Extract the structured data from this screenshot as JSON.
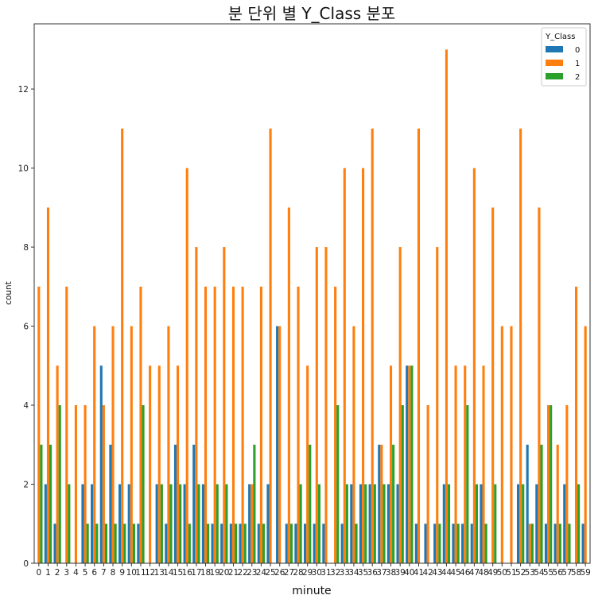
{
  "chart_data": {
    "type": "bar",
    "title": "분 단위 별 Y_Class 분포",
    "xlabel": "minute",
    "ylabel": "count",
    "ylim": [
      0,
      13.65
    ],
    "yticks": [
      0,
      2,
      4,
      6,
      8,
      10,
      12
    ],
    "categories": [
      "0",
      "1",
      "2",
      "3",
      "4",
      "5",
      "6",
      "7",
      "8",
      "9",
      "10",
      "11",
      "12",
      "13",
      "14",
      "15",
      "16",
      "17",
      "18",
      "19",
      "20",
      "21",
      "22",
      "23",
      "24",
      "25",
      "26",
      "27",
      "28",
      "29",
      "30",
      "31",
      "32",
      "33",
      "34",
      "35",
      "36",
      "37",
      "38",
      "39",
      "40",
      "41",
      "42",
      "43",
      "44",
      "45",
      "46",
      "47",
      "48",
      "49",
      "50",
      "51",
      "52",
      "53",
      "54",
      "55",
      "56",
      "57",
      "58",
      "59"
    ],
    "legend": {
      "title": "Y_Class",
      "position": "top-right"
    },
    "series": [
      {
        "name": "0",
        "color": "#1f77b4",
        "values": [
          0,
          2,
          1,
          0,
          0,
          2,
          2,
          5,
          3,
          2,
          2,
          1,
          0,
          2,
          1,
          3,
          2,
          3,
          2,
          1,
          1,
          1,
          1,
          2,
          1,
          2,
          6,
          1,
          1,
          1,
          1,
          1,
          0,
          1,
          2,
          2,
          2,
          3,
          2,
          2,
          5,
          1,
          1,
          1,
          2,
          1,
          1,
          1,
          2,
          0,
          0,
          0,
          2,
          3,
          2,
          1,
          1,
          2,
          0,
          1
        ]
      },
      {
        "name": "1",
        "color": "#ff7f0e",
        "values": [
          7,
          9,
          5,
          7,
          4,
          4,
          6,
          4,
          6,
          11,
          6,
          7,
          5,
          5,
          6,
          5,
          10,
          8,
          7,
          7,
          8,
          7,
          7,
          2,
          7,
          11,
          6,
          9,
          7,
          5,
          8,
          8,
          7,
          10,
          6,
          10,
          11,
          3,
          5,
          8,
          5,
          11,
          4,
          8,
          13,
          5,
          5,
          10,
          5,
          9,
          6,
          6,
          11,
          1,
          9,
          4,
          3,
          4,
          7,
          6
        ]
      },
      {
        "name": "2",
        "color": "#2ca02c",
        "values": [
          3,
          3,
          4,
          2,
          0,
          1,
          1,
          1,
          1,
          1,
          1,
          4,
          0,
          2,
          2,
          2,
          1,
          2,
          1,
          2,
          2,
          1,
          1,
          3,
          1,
          0,
          0,
          1,
          2,
          3,
          2,
          0,
          4,
          2,
          1,
          2,
          2,
          2,
          3,
          4,
          5,
          0,
          0,
          1,
          2,
          1,
          4,
          2,
          1,
          2,
          0,
          0,
          2,
          1,
          3,
          4,
          1,
          1,
          2,
          0
        ]
      }
    ]
  }
}
